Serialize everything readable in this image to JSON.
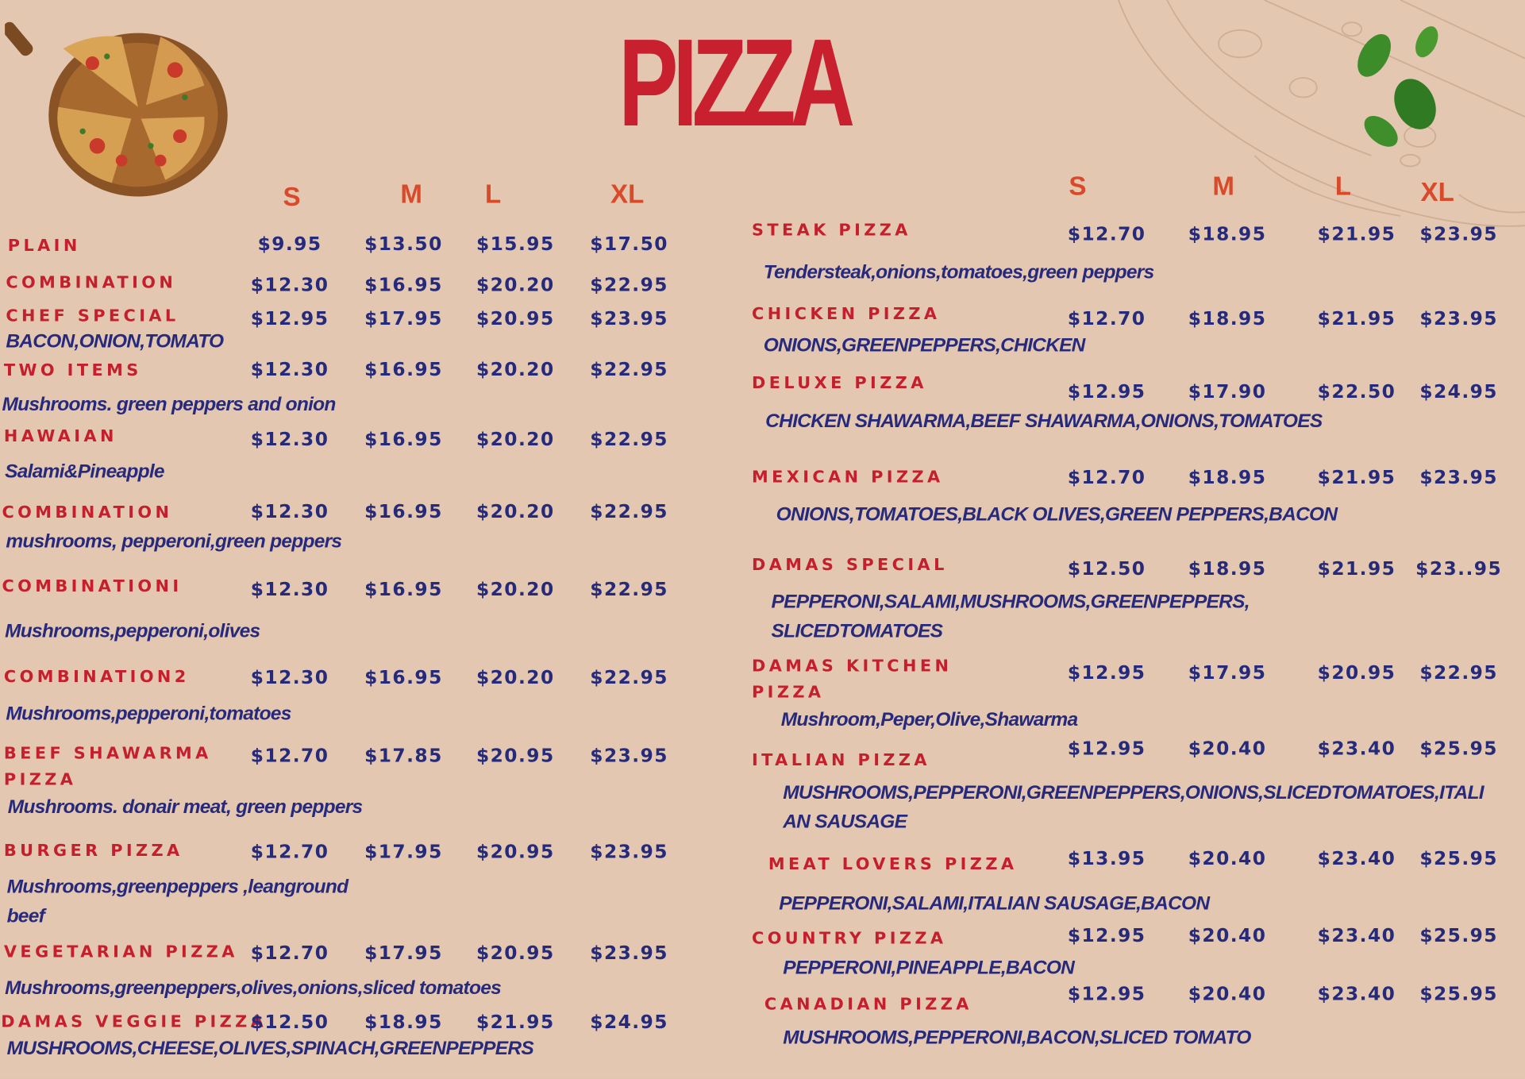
{
  "title": "PIZZA",
  "colors": {
    "background": "#e3c7b0",
    "name": "#c51f2e",
    "price": "#262a7a",
    "header": "#d84a2a",
    "title": "#c8202f"
  },
  "icons": {
    "pizza_board": "pizza-board-image",
    "basil": "basil-leaves-image",
    "sketch": "pizza-sketch-illustration"
  },
  "size_headers": [
    "S",
    "M",
    "L",
    "XL"
  ],
  "left_menu": [
    {
      "name": [
        "PLAIN"
      ],
      "prices": [
        "$9.95",
        "$13.50",
        "$15.95",
        "$17.50"
      ],
      "desc": []
    },
    {
      "name": [
        "COMBINATION"
      ],
      "prices": [
        "$12.30",
        "$16.95",
        "$20.20",
        "$22.95"
      ],
      "desc": []
    },
    {
      "name": [
        "CHEF SPECIAL"
      ],
      "prices": [
        "$12.95",
        "$17.95",
        "$20.95",
        "$23.95"
      ],
      "desc": [
        "BACON,ONION,TOMATO"
      ]
    },
    {
      "name": [
        "TWO ITEMS"
      ],
      "prices": [
        "$12.30",
        "$16.95",
        "$20.20",
        "$22.95"
      ],
      "desc": [
        "Mushrooms. green peppers and onion"
      ]
    },
    {
      "name": [
        "HAWAIAN"
      ],
      "prices": [
        "$12.30",
        "$16.95",
        "$20.20",
        "$22.95"
      ],
      "desc": [
        "Salami&Pineapple"
      ]
    },
    {
      "name": [
        "COMBINATION"
      ],
      "prices": [
        "$12.30",
        "$16.95",
        "$20.20",
        "$22.95"
      ],
      "desc": [
        "mushrooms, pepperoni,green peppers"
      ]
    },
    {
      "name": [
        "COMBINATIONI"
      ],
      "prices": [
        "$12.30",
        "$16.95",
        "$20.20",
        "$22.95"
      ],
      "desc": [
        "Mushrooms,pepperoni,olives"
      ]
    },
    {
      "name": [
        "COMBINATION2"
      ],
      "prices": [
        "$12.30",
        "$16.95",
        "$20.20",
        "$22.95"
      ],
      "desc": [
        "Mushrooms,pepperoni,tomatoes"
      ]
    },
    {
      "name": [
        "BEEF SHAWARMA",
        "PIZZA"
      ],
      "prices": [
        "$12.70",
        "$17.85",
        "$20.95",
        "$23.95"
      ],
      "desc": [
        "Mushrooms. donair meat, green peppers"
      ]
    },
    {
      "name": [
        "BURGER PIZZA"
      ],
      "prices": [
        "$12.70",
        "$17.95",
        "$20.95",
        "$23.95"
      ],
      "desc": [
        "Mushrooms,greenpeppers ,leanground",
        "beef"
      ]
    },
    {
      "name": [
        "VEGETARIAN PIZZA"
      ],
      "prices": [
        "$12.70",
        "$17.95",
        "$20.95",
        "$23.95"
      ],
      "desc": [
        "Mushrooms,greenpeppers,olives,onions,sliced tomatoes"
      ]
    },
    {
      "name": [
        "DAMAS VEGGIE PIZZA"
      ],
      "prices": [
        "$12.50",
        "$18.95",
        "$21.95",
        "$24.95"
      ],
      "desc": [
        "MUSHROOMS,CHEESE,OLIVES,SPINACH,GREENPEPPERS"
      ]
    }
  ],
  "right_menu": [
    {
      "name": [
        "STEAK PIZZA"
      ],
      "prices": [
        "$12.70",
        "$18.95",
        "$21.95",
        "$23.95"
      ],
      "desc": [
        "Tendersteak,onions,tomatoes,green peppers"
      ]
    },
    {
      "name": [
        "CHICKEN PIZZA"
      ],
      "prices": [
        "$12.70",
        "$18.95",
        "$21.95",
        "$23.95"
      ],
      "desc": [
        "ONIONS,GREENPEPPERS,CHICKEN"
      ]
    },
    {
      "name": [
        "DELUXE PIZZA"
      ],
      "prices": [
        "$12.95",
        "$17.90",
        "$22.50",
        "$24.95"
      ],
      "desc": [
        "CHICKEN SHAWARMA,BEEF SHAWARMA,ONIONS,TOMATOES"
      ]
    },
    {
      "name": [
        "MEXICAN PIZZA"
      ],
      "prices": [
        "$12.70",
        "$18.95",
        "$21.95",
        "$23.95"
      ],
      "desc": [
        "ONIONS,TOMATOES,BLACK OLIVES,GREEN PEPPERS,BACON"
      ]
    },
    {
      "name": [
        "DAMAS SPECIAL"
      ],
      "prices": [
        "$12.50",
        "$18.95",
        "$21.95",
        "$23..95"
      ],
      "desc": [
        "PEPPERONI,SALAMI,MUSHROOMS,GREENPEPPERS,",
        "SLICEDTOMATOES"
      ]
    },
    {
      "name": [
        "DAMAS KITCHEN",
        "PIZZA"
      ],
      "prices": [
        "$12.95",
        "$17.95",
        "$20.95",
        "$22.95"
      ],
      "desc": [
        "Mushroom,Peper,Olive,Shawarma"
      ]
    },
    {
      "name": [
        "ITALIAN PIZZA"
      ],
      "prices": [
        "$12.95",
        "$20.40",
        "$23.40",
        "$25.95"
      ],
      "desc": [
        "MUSHROOMS,PEPPERONI,GREENPEPPERS,ONIONS,SLICEDTOMATOES,ITALI",
        "AN SAUSAGE"
      ]
    },
    {
      "name": [
        "MEAT LOVERS PIZZA"
      ],
      "prices": [
        "$13.95",
        "$20.40",
        "$23.40",
        "$25.95"
      ],
      "desc": [
        "PEPPERONI,SALAMI,ITALIAN SAUSAGE,BACON"
      ]
    },
    {
      "name": [
        "COUNTRY PIZZA"
      ],
      "prices": [
        "$12.95",
        "$20.40",
        "$23.40",
        "$25.95"
      ],
      "desc": [
        "PEPPERONI,PINEAPPLE,BACON"
      ]
    },
    {
      "name": [
        "CANADIAN PIZZA"
      ],
      "prices": [
        "$12.95",
        "$20.40",
        "$23.40",
        "$25.95"
      ],
      "desc": [
        "MUSHROOMS,PEPPERONI,BACON,SLICED TOMATO"
      ]
    }
  ]
}
